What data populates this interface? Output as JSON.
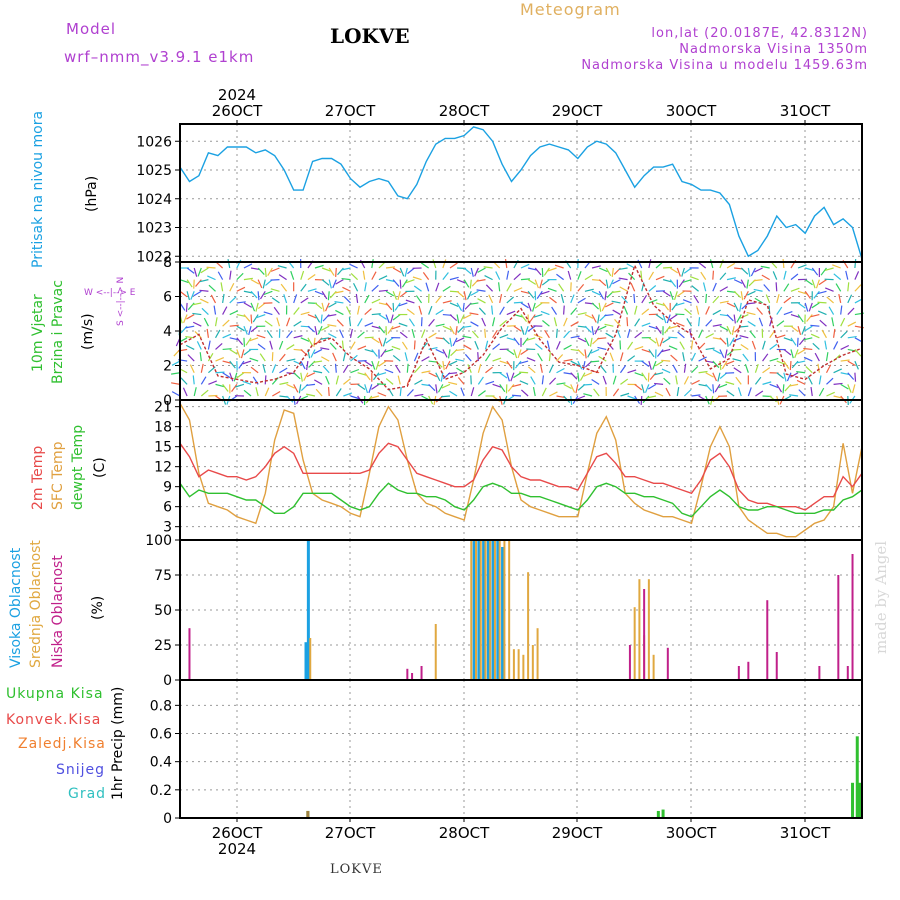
{
  "header": {
    "model_label": "Model",
    "model_name": "wrf–nmm_v3.9.1  e1km",
    "station": "LOKVE",
    "meteogram": "Meteogram",
    "lonlat": "lon,lat (20.0187E, 42.8312N)",
    "altitude": "Nadmorska Visina 1350m",
    "model_altitude": "Nadmorska Visina u modelu 1459.63m"
  },
  "footer": {
    "station": "LOKVE",
    "credit": "made by Angel"
  },
  "time_axis": {
    "year": "2024",
    "days": [
      "26OCT",
      "27OCT",
      "28OCT",
      "29OCT",
      "30OCT",
      "31OCT"
    ]
  },
  "panels": {
    "pressure": {
      "label": "Pritisak na nivou mora",
      "unit": "(hPa)",
      "ticks": [
        "1022",
        "1023",
        "1024",
        "1025",
        "1026"
      ]
    },
    "wind": {
      "label1": "10m Vjetar",
      "label2": "Brzina i Pravac",
      "unit": "(m/s)",
      "ticks": [
        "0",
        "2",
        "4",
        "6",
        "8"
      ],
      "compass": "W <--|--> E",
      "compass_vertical": "S <--|--> N"
    },
    "temp": {
      "label1": "2m Temp",
      "label2": "SFC Temp",
      "label3": "dewpt Temp",
      "unit": "(C)",
      "ticks": [
        "3",
        "6",
        "9",
        "12",
        "15",
        "18",
        "21"
      ]
    },
    "cloud": {
      "label1": "Visoka Oblacnost",
      "label2": "Srednja Oblacnost",
      "label3": "Niska Oblacnost",
      "unit": "(%)",
      "ticks": [
        "0",
        "25",
        "50",
        "75",
        "100"
      ]
    },
    "precip": {
      "labels": [
        "Ukupna Kisa",
        "Konvek.Kisa",
        "Zaledj.Kisa",
        "Snijeg",
        "Grad"
      ],
      "unit": "1hr Precip (mm)",
      "ticks": [
        "0",
        "0.2",
        "0.4",
        "0.6",
        "0.8"
      ]
    }
  },
  "colors": {
    "pressure": "#1ba1e2",
    "temp2m": "#e84a4a",
    "sfc": "#e0a040",
    "dewpt": "#30c030",
    "high": "#1ba1e2",
    "mid": "#e0a840",
    "low": "#c0208a",
    "rain": "#30c030",
    "conv": "#e84a4a",
    "frz": "#f08030",
    "snow": "#5050e0",
    "hail": "#30c0c0"
  },
  "chart_data": [
    {
      "type": "line",
      "title": "Pritisak na nivou mora",
      "ylabel": "(hPa)",
      "ylim": [
        1021.8,
        1026.6
      ],
      "xlim": [
        0,
        144
      ],
      "x_unit": "hours after 2024-10-25 12:00",
      "series": [
        {
          "name": "Pritisak na nivou mora",
          "x": [
            0,
            2,
            4,
            6,
            8,
            10,
            12,
            14,
            16,
            18,
            20,
            22,
            24,
            26,
            28,
            30,
            32,
            34,
            36,
            38,
            40,
            42,
            44,
            46,
            48,
            50,
            52,
            54,
            56,
            58,
            60,
            62,
            64,
            66,
            68,
            70,
            72,
            74,
            76,
            78,
            80,
            82,
            84,
            86,
            88,
            90,
            92,
            94,
            96,
            98,
            100,
            102,
            104,
            106,
            108,
            110,
            112,
            114,
            116,
            118,
            120,
            122,
            124,
            126,
            128,
            130,
            132,
            134,
            136,
            138,
            140,
            142,
            144
          ],
          "y": [
            1025.1,
            1024.6,
            1024.8,
            1025.6,
            1025.5,
            1025.8,
            1025.8,
            1025.8,
            1025.6,
            1025.7,
            1025.5,
            1025.0,
            1024.3,
            1024.3,
            1025.3,
            1025.4,
            1025.4,
            1025.2,
            1024.7,
            1024.4,
            1024.6,
            1024.7,
            1024.6,
            1024.1,
            1024.0,
            1024.5,
            1025.3,
            1025.9,
            1026.1,
            1026.1,
            1026.2,
            1026.5,
            1026.4,
            1026.0,
            1025.2,
            1024.6,
            1025.0,
            1025.5,
            1025.8,
            1025.9,
            1025.8,
            1025.7,
            1025.4,
            1025.8,
            1026.0,
            1025.9,
            1025.6,
            1025.0,
            1024.4,
            1024.8,
            1025.1,
            1025.1,
            1025.2,
            1024.6,
            1024.5,
            1024.3,
            1024.3,
            1024.2,
            1023.8,
            1022.7,
            1022.0,
            1022.2,
            1022.7,
            1023.4,
            1023.0,
            1023.1,
            1022.8,
            1023.4,
            1023.7,
            1023.1,
            1023.3,
            1023.0,
            1021.9
          ]
        }
      ]
    },
    {
      "type": "line",
      "title": "10m Vjetar Brzina i Pravac",
      "ylabel": "(m/s)",
      "ylim": [
        0,
        8
      ],
      "xlim": [
        0,
        144
      ],
      "x_unit": "hours after 2024-10-25 12:00",
      "series": [
        {
          "x": [
            0,
            4,
            8,
            12,
            16,
            20,
            24,
            28,
            32,
            36,
            40,
            44,
            48,
            52,
            56,
            60,
            64,
            68,
            72,
            76,
            80,
            84,
            88,
            92,
            96,
            100,
            104,
            108,
            112,
            116,
            120,
            124,
            128,
            132,
            136,
            140,
            144
          ],
          "y": [
            3.2,
            3.8,
            1.4,
            1.2,
            1.0,
            1.2,
            1.6,
            3.2,
            3.6,
            2.5,
            1.8,
            0.6,
            0.8,
            3.5,
            1.2,
            1.6,
            2.6,
            4.2,
            5.3,
            3.5,
            2.2,
            2.0,
            1.6,
            3.8,
            7.8,
            5.5,
            4.5,
            3.8,
            1.8,
            2.4,
            5.8,
            5.5,
            1.5,
            1.2,
            2.0,
            2.6,
            3.0
          ]
        }
      ]
    },
    {
      "type": "line",
      "title": "2m Temp / SFC Temp / dewpt Temp",
      "ylabel": "(C)",
      "ylim": [
        1,
        22
      ],
      "xlim": [
        0,
        144
      ],
      "x_unit": "hours after 2024-10-25 12:00",
      "series": [
        {
          "name": "2m Temp",
          "x": [
            0,
            2,
            4,
            6,
            8,
            10,
            12,
            14,
            16,
            18,
            20,
            22,
            24,
            26,
            28,
            30,
            32,
            34,
            36,
            38,
            40,
            42,
            44,
            46,
            48,
            50,
            52,
            54,
            56,
            58,
            60,
            62,
            64,
            66,
            68,
            70,
            72,
            74,
            76,
            78,
            80,
            82,
            84,
            86,
            88,
            90,
            92,
            94,
            96,
            98,
            100,
            102,
            104,
            106,
            108,
            110,
            112,
            114,
            116,
            118,
            120,
            122,
            124,
            126,
            128,
            130,
            132,
            134,
            136,
            138,
            140,
            142,
            144
          ],
          "y": [
            15.5,
            13.5,
            10.5,
            11.5,
            11,
            10.5,
            10.5,
            10,
            10.5,
            12,
            14,
            15,
            14,
            11,
            11,
            11,
            11,
            11,
            11,
            11,
            11.5,
            14,
            15.5,
            15,
            13,
            11,
            10.5,
            10,
            9.5,
            9,
            9,
            10,
            13,
            15,
            14.5,
            12,
            10.5,
            10,
            10,
            9.5,
            9,
            9,
            8.5,
            11,
            13.5,
            14,
            12.5,
            10.5,
            10.5,
            10,
            9.5,
            9.5,
            9,
            8.5,
            8,
            10,
            13,
            14,
            12,
            8.5,
            7,
            6.5,
            6.5,
            6,
            6,
            6,
            5.5,
            6.5,
            7.5,
            7.5,
            10.5,
            9,
            11
          ]
        },
        {
          "name": "SFC Temp",
          "x": [
            0,
            2,
            4,
            6,
            8,
            10,
            12,
            14,
            16,
            18,
            20,
            22,
            24,
            26,
            28,
            30,
            32,
            34,
            36,
            38,
            40,
            42,
            44,
            46,
            48,
            50,
            52,
            54,
            56,
            58,
            60,
            62,
            64,
            66,
            68,
            70,
            72,
            74,
            76,
            78,
            80,
            82,
            84,
            86,
            88,
            90,
            92,
            94,
            96,
            98,
            100,
            102,
            104,
            106,
            108,
            110,
            112,
            114,
            116,
            118,
            120,
            122,
            124,
            126,
            128,
            130,
            132,
            134,
            136,
            138,
            140,
            142,
            144
          ],
          "y": [
            21.5,
            19,
            11,
            6.5,
            6,
            5.5,
            4.5,
            4,
            3.5,
            8,
            16,
            20.5,
            20,
            13,
            8,
            7,
            6.5,
            6,
            5,
            4.5,
            11,
            18,
            21,
            19,
            13,
            8,
            6.5,
            6,
            5,
            4.5,
            4,
            10,
            17,
            21,
            19,
            12,
            7,
            6,
            5.5,
            5,
            4.5,
            4.5,
            4.5,
            11,
            17,
            19.5,
            16,
            8,
            6.5,
            5.5,
            5,
            4.5,
            4.5,
            4,
            3.5,
            9,
            15,
            18,
            15,
            6,
            4,
            3,
            2,
            2,
            1.5,
            1.5,
            2.5,
            3.5,
            4,
            6,
            15.5,
            8,
            15
          ]
        },
        {
          "name": "dewpt Temp",
          "x": [
            0,
            2,
            4,
            6,
            8,
            10,
            12,
            14,
            16,
            18,
            20,
            22,
            24,
            26,
            28,
            30,
            32,
            34,
            36,
            38,
            40,
            42,
            44,
            46,
            48,
            50,
            52,
            54,
            56,
            58,
            60,
            62,
            64,
            66,
            68,
            70,
            72,
            74,
            76,
            78,
            80,
            82,
            84,
            86,
            88,
            90,
            92,
            94,
            96,
            98,
            100,
            102,
            104,
            106,
            108,
            110,
            112,
            114,
            116,
            118,
            120,
            122,
            124,
            126,
            128,
            130,
            132,
            134,
            136,
            138,
            140,
            142,
            144
          ],
          "y": [
            9.5,
            7.5,
            8.5,
            8,
            8,
            8,
            7.5,
            7,
            7,
            6,
            5,
            5,
            6,
            8,
            8,
            8,
            8,
            7,
            6,
            5.5,
            6,
            8,
            9.5,
            8.5,
            8,
            8,
            7.5,
            7.5,
            7,
            6,
            5.5,
            7,
            9,
            9.5,
            9,
            8,
            8,
            7.5,
            7.5,
            7,
            6.5,
            6,
            5.5,
            7,
            9,
            9.5,
            9,
            8,
            8,
            7.5,
            7.5,
            7,
            6.5,
            5,
            4.5,
            6,
            7.5,
            8.5,
            7.5,
            6,
            5.5,
            5.5,
            6,
            6,
            5.5,
            5,
            5,
            5,
            5.5,
            5.5,
            7,
            7.5,
            8.5
          ]
        }
      ]
    },
    {
      "type": "bar",
      "title": "Visoka / Srednja / Niska Oblacnost",
      "ylabel": "(%)",
      "ylim": [
        0,
        100
      ],
      "xlim": [
        0,
        144
      ],
      "x_unit": "hours after 2024-10-25 12:00",
      "series": [
        {
          "name": "Visoka Oblacnost",
          "x": [
            26.5,
            27,
            62,
            63,
            64,
            65,
            66,
            67,
            68
          ],
          "y": [
            27,
            100,
            100,
            100,
            100,
            100,
            100,
            100,
            95
          ]
        },
        {
          "name": "Srednja Oblacnost",
          "x": [
            27.5,
            54,
            61.5,
            62.5,
            63.5,
            64.5,
            65.5,
            66.5,
            67.5,
            68.5,
            69.5,
            70.5,
            71.5,
            72.5,
            73.5,
            74.5,
            75.5,
            96,
            97,
            98,
            99,
            100
          ],
          "y": [
            30,
            40,
            100,
            100,
            100,
            100,
            100,
            100,
            100,
            100,
            100,
            22,
            22,
            18,
            77,
            25,
            37,
            52,
            72,
            32,
            72,
            18
          ]
        },
        {
          "name": "Niska Oblacnost",
          "x": [
            2,
            48,
            49,
            51,
            95,
            98,
            103,
            118,
            120,
            124,
            126,
            135,
            139,
            141,
            142
          ],
          "y": [
            37,
            8,
            5,
            10,
            25,
            65,
            23,
            10,
            13,
            57,
            20,
            10,
            75,
            10,
            90
          ]
        }
      ]
    },
    {
      "type": "bar",
      "title": "1hr Precip",
      "ylabel": "1hr Precip (mm)",
      "ylim": [
        0,
        0.98
      ],
      "xlim": [
        0,
        144
      ],
      "x_unit": "hours after 2024-10-25 12:00",
      "series": [
        {
          "name": "Ukupna Kisa",
          "x": [
            27,
            101,
            102,
            142,
            143,
            143.5
          ],
          "y": [
            0.05,
            0.05,
            0.06,
            0.25,
            0.58,
            0.25
          ]
        },
        {
          "name": "Zaledj.Kisa",
          "x": [
            27
          ],
          "y": [
            0.05
          ]
        }
      ]
    }
  ]
}
